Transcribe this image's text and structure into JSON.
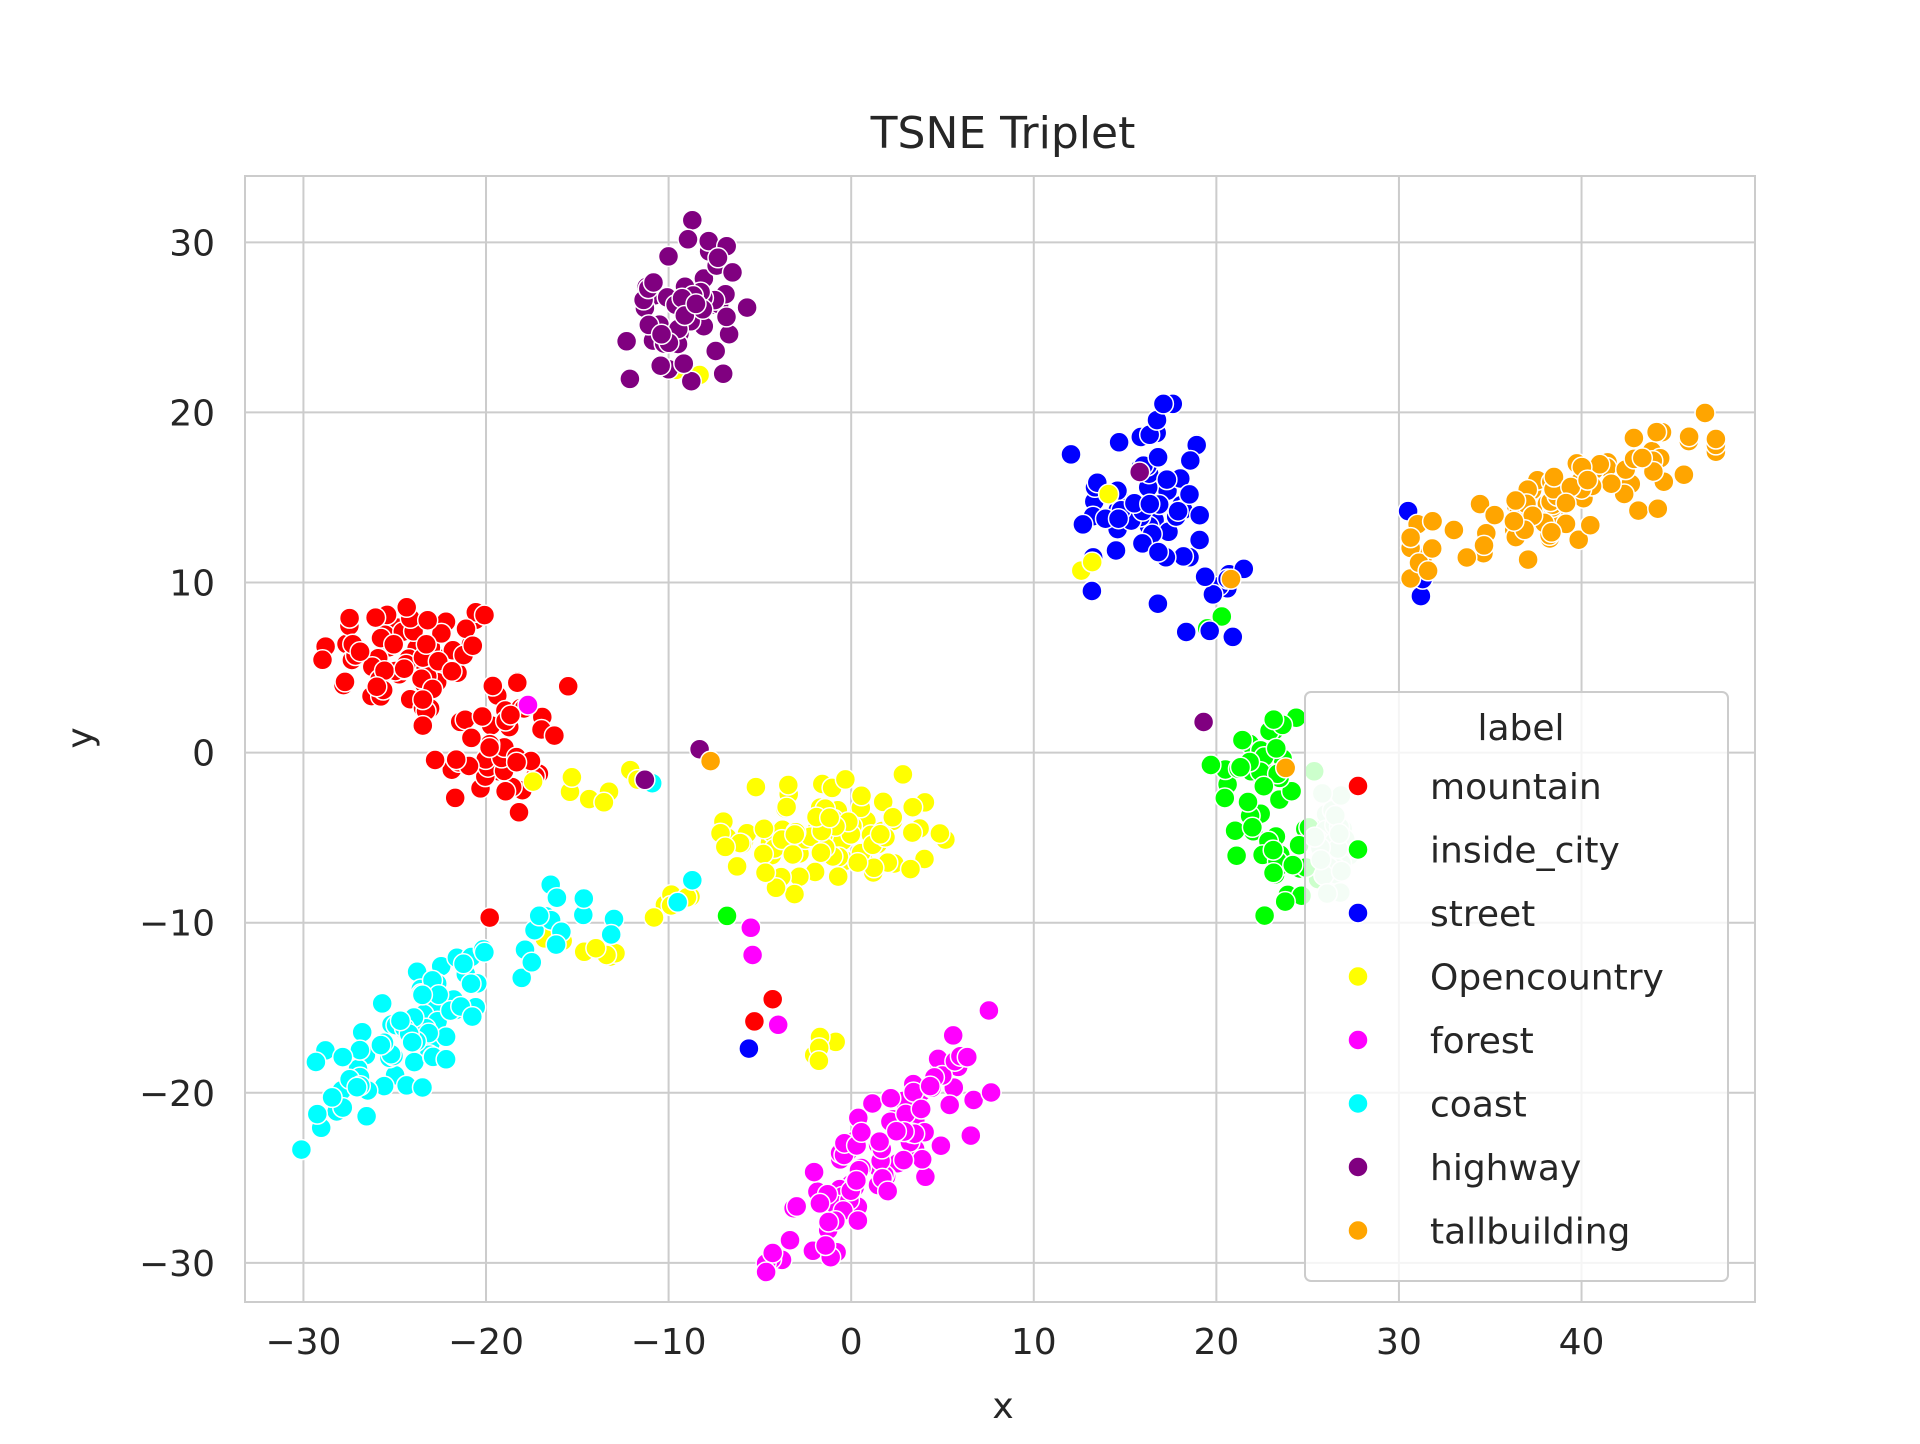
{
  "chart_data": {
    "type": "scatter",
    "title": "TSNE Triplet",
    "xlabel": "x",
    "ylabel": "y",
    "xlim": [
      -33.2,
      49.5
    ],
    "ylim": [
      -32.3,
      33.9
    ],
    "x_ticks": [
      -30,
      -20,
      -10,
      0,
      10,
      20,
      30,
      40
    ],
    "y_ticks": [
      -30,
      -20,
      -10,
      0,
      10,
      20,
      30
    ],
    "x_tick_labels": [
      "−30",
      "−20",
      "−10",
      "0",
      "10",
      "20",
      "30",
      "40"
    ],
    "y_tick_labels": [
      "−30",
      "−20",
      "−10",
      "0",
      "10",
      "20",
      "30"
    ],
    "grid": true,
    "legend": {
      "title": "label",
      "placement": "right"
    },
    "series": [
      {
        "name": "mountain",
        "color": "#ff0000",
        "clusters": [
          {
            "cx": -24.0,
            "cy": 5.5,
            "sx": 2.6,
            "sy": 1.8,
            "n": 70
          },
          {
            "cx": -19.5,
            "cy": 0.5,
            "sx": 1.8,
            "sy": 2.3,
            "n": 45
          }
        ],
        "extra": [
          [
            -15.5,
            3.9
          ],
          [
            -19.8,
            -9.7
          ],
          [
            -4.3,
            -14.5
          ],
          [
            -5.3,
            -15.8
          ]
        ]
      },
      {
        "name": "inside_city",
        "color": "#00ff00",
        "clusters": [
          {
            "cx": 22.5,
            "cy": -1.5,
            "sx": 1.3,
            "sy": 2.6,
            "n": 40
          },
          {
            "cx": 24.5,
            "cy": -6.5,
            "sx": 1.2,
            "sy": 1.4,
            "n": 25
          }
        ],
        "extra": [
          [
            19.5,
            7.3
          ],
          [
            20.3,
            8.0
          ],
          [
            -6.8,
            -9.6
          ]
        ]
      },
      {
        "name": "street",
        "color": "#0000ff",
        "clusters": [
          {
            "cx": 16.0,
            "cy": 15.0,
            "sx": 1.8,
            "sy": 2.5,
            "n": 55
          },
          {
            "cx": 19.0,
            "cy": 10.0,
            "sx": 1.0,
            "sy": 1.5,
            "n": 14
          }
        ],
        "extra": [
          [
            30.5,
            14.2
          ],
          [
            31.2,
            9.2
          ],
          [
            31.3,
            10.2
          ],
          [
            -5.6,
            -17.4
          ],
          [
            21.5,
            10.8
          ],
          [
            20.9,
            6.8
          ]
        ]
      },
      {
        "name": "Opencountry",
        "color": "#ffff00",
        "clusters": [
          {
            "cx": -1.0,
            "cy": -4.8,
            "sx": 2.8,
            "sy": 1.6,
            "n": 95
          },
          {
            "cx": -15.0,
            "cy": -2.0,
            "sx": 1.5,
            "sy": 0.5,
            "n": 8
          },
          {
            "cx": -15.0,
            "cy": -11.5,
            "sx": 1.2,
            "sy": 0.4,
            "n": 7
          },
          {
            "cx": -9.5,
            "cy": -8.8,
            "sx": 0.8,
            "sy": 0.5,
            "n": 6
          },
          {
            "cx": -1.8,
            "cy": -17.5,
            "sx": 0.8,
            "sy": 0.6,
            "n": 5
          }
        ],
        "extra": [
          [
            -9.6,
            22.5
          ],
          [
            -8.3,
            22.2
          ],
          [
            12.6,
            10.7
          ],
          [
            13.2,
            11.2
          ],
          [
            14.1,
            15.2
          ]
        ]
      },
      {
        "name": "forest",
        "color": "#ff00ff",
        "clusters": [
          {
            "cx": 1.5,
            "cy": -23.8,
            "sx": 2.8,
            "sy": 3.0,
            "n": 95,
            "corr": 0.85
          }
        ],
        "extra": [
          [
            -17.7,
            2.8
          ],
          [
            -5.5,
            -10.3
          ],
          [
            -5.4,
            -11.9
          ],
          [
            -4.0,
            -16.0
          ]
        ]
      },
      {
        "name": "coast",
        "color": "#00ffff",
        "clusters": [
          {
            "cx": -23.5,
            "cy": -16.0,
            "sx": 3.2,
            "sy": 3.2,
            "n": 85,
            "corr": 0.85
          },
          {
            "cx": -15.5,
            "cy": -10.2,
            "sx": 1.2,
            "sy": 0.8,
            "n": 10
          }
        ],
        "extra": [
          [
            -10.9,
            -1.8
          ],
          [
            -8.7,
            -7.5
          ],
          [
            -9.5,
            -8.8
          ]
        ]
      },
      {
        "name": "highway",
        "color": "#800080",
        "clusters": [
          {
            "cx": -9.0,
            "cy": 26.5,
            "sx": 1.5,
            "sy": 2.4,
            "n": 55
          }
        ],
        "extra": [
          [
            -8.3,
            0.2
          ],
          [
            -11.3,
            -1.6
          ],
          [
            19.3,
            1.8
          ],
          [
            15.8,
            16.5
          ]
        ]
      },
      {
        "name": "tallbuilding",
        "color": "#ffa500",
        "clusters": [
          {
            "cx": 39.0,
            "cy": 14.8,
            "sx": 3.8,
            "sy": 2.0,
            "n": 85,
            "corr": 0.8
          }
        ],
        "extra": [
          [
            -7.7,
            -0.5
          ],
          [
            23.8,
            -0.9
          ],
          [
            20.8,
            10.2
          ]
        ]
      },
      {
        "name": "",
        "color": "#c8f5d0",
        "clusters": [
          {
            "cx": 26.3,
            "cy": -5.8,
            "sx": 0.7,
            "sy": 1.5,
            "n": 30
          }
        ],
        "extra": [
          [
            25.8,
            -2.4
          ]
        ]
      }
    ]
  }
}
